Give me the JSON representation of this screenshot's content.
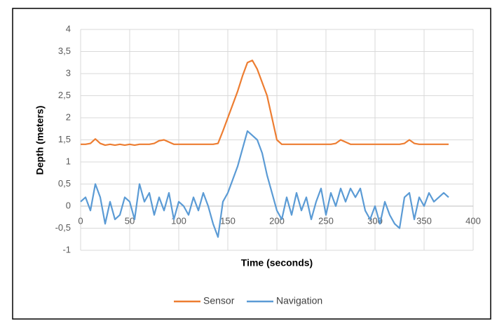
{
  "chart_data": {
    "type": "line",
    "xlabel": "Time (seconds)",
    "ylabel": "Depth (meters)",
    "x": [
      0,
      5,
      10,
      15,
      20,
      25,
      30,
      35,
      40,
      45,
      50,
      55,
      60,
      65,
      70,
      75,
      80,
      85,
      90,
      95,
      100,
      105,
      110,
      115,
      120,
      125,
      130,
      135,
      140,
      145,
      150,
      155,
      160,
      165,
      170,
      175,
      180,
      185,
      190,
      195,
      200,
      205,
      210,
      215,
      220,
      225,
      230,
      235,
      240,
      245,
      250,
      255,
      260,
      265,
      270,
      275,
      280,
      285,
      290,
      295,
      300,
      305,
      310,
      315,
      320,
      325,
      330,
      335,
      340,
      345,
      350,
      355,
      360,
      365,
      370,
      375
    ],
    "series": [
      {
        "name": "Sensor",
        "color": "#ed7d31",
        "values": [
          1.4,
          1.4,
          1.42,
          1.52,
          1.42,
          1.38,
          1.4,
          1.38,
          1.4,
          1.38,
          1.4,
          1.38,
          1.4,
          1.4,
          1.4,
          1.42,
          1.48,
          1.5,
          1.45,
          1.4,
          1.4,
          1.4,
          1.4,
          1.4,
          1.4,
          1.4,
          1.4,
          1.4,
          1.42,
          1.7,
          2.0,
          2.3,
          2.6,
          2.95,
          3.25,
          3.3,
          3.1,
          2.8,
          2.5,
          2.0,
          1.5,
          1.4,
          1.4,
          1.4,
          1.4,
          1.4,
          1.4,
          1.4,
          1.4,
          1.4,
          1.4,
          1.4,
          1.42,
          1.5,
          1.45,
          1.4,
          1.4,
          1.4,
          1.4,
          1.4,
          1.4,
          1.4,
          1.4,
          1.4,
          1.4,
          1.4,
          1.42,
          1.5,
          1.42,
          1.4,
          1.4,
          1.4,
          1.4,
          1.4,
          1.4,
          1.4
        ]
      },
      {
        "name": "Navigation",
        "color": "#5b9bd5",
        "values": [
          0.1,
          0.2,
          -0.1,
          0.5,
          0.2,
          -0.4,
          0.1,
          -0.3,
          -0.2,
          0.2,
          0.1,
          -0.3,
          0.5,
          0.1,
          0.3,
          -0.2,
          0.2,
          -0.1,
          0.3,
          -0.3,
          0.1,
          0.0,
          -0.2,
          0.2,
          -0.1,
          0.3,
          0.0,
          -0.4,
          -0.7,
          0.1,
          0.3,
          0.6,
          0.9,
          1.3,
          1.7,
          1.6,
          1.5,
          1.2,
          0.7,
          0.3,
          -0.1,
          -0.3,
          0.2,
          -0.2,
          0.3,
          -0.1,
          0.2,
          -0.3,
          0.1,
          0.4,
          -0.2,
          0.3,
          0.0,
          0.4,
          0.1,
          0.4,
          0.2,
          0.4,
          -0.1,
          -0.3,
          0.0,
          -0.4,
          0.1,
          -0.2,
          -0.4,
          -0.5,
          0.2,
          0.3,
          -0.3,
          0.2,
          0.0,
          0.3,
          0.1,
          0.2,
          0.3,
          0.2
        ]
      }
    ],
    "xlim": [
      0,
      400
    ],
    "xticks": [
      0,
      50,
      100,
      150,
      200,
      250,
      300,
      350,
      400
    ],
    "ylim": [
      -1,
      4
    ],
    "yticks": [
      -1,
      {
        "value": -0.5,
        "label": "-0,5"
      },
      0,
      {
        "value": 0.5,
        "label": "0,5"
      },
      1,
      {
        "value": 1.5,
        "label": "1,5"
      },
      2,
      {
        "value": 2.5,
        "label": "2,5"
      },
      3,
      {
        "value": 3.5,
        "label": "3,5"
      },
      4
    ],
    "grid": true,
    "legend": "bottom"
  }
}
